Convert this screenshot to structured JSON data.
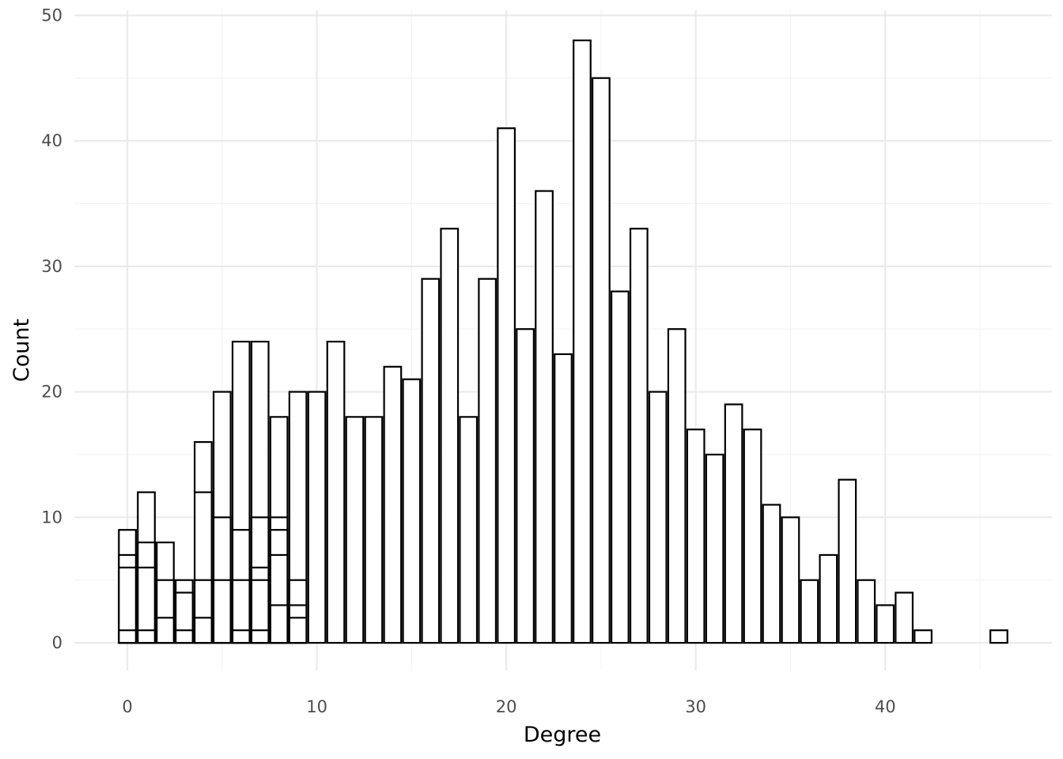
{
  "chart_data": {
    "type": "bar",
    "subtype": "stacked-histogram",
    "title": "",
    "xlabel": "Degree",
    "ylabel": "Count",
    "xlim": [
      -2.8,
      48.8
    ],
    "ylim": [
      -2.2,
      50.4
    ],
    "x_ticks": [
      0,
      10,
      20,
      30,
      40
    ],
    "y_ticks": [
      0,
      10,
      20,
      30,
      40,
      50
    ],
    "grid": true,
    "legend": "none",
    "bar_fill": "#ffffff",
    "bar_stroke": "#000000",
    "bins": [
      {
        "x": 0,
        "stack": [
          1,
          6,
          7,
          9
        ]
      },
      {
        "x": 1,
        "stack": [
          1,
          6,
          8,
          12
        ]
      },
      {
        "x": 2,
        "stack": [
          2,
          5,
          8
        ]
      },
      {
        "x": 3,
        "stack": [
          1,
          4,
          5
        ]
      },
      {
        "x": 4,
        "stack": [
          2,
          5,
          12,
          16
        ]
      },
      {
        "x": 5,
        "stack": [
          5,
          10,
          20
        ]
      },
      {
        "x": 6,
        "stack": [
          1,
          5,
          9,
          24
        ]
      },
      {
        "x": 7,
        "stack": [
          1,
          5,
          6,
          10,
          24
        ]
      },
      {
        "x": 8,
        "stack": [
          3,
          7,
          9,
          10,
          18
        ]
      },
      {
        "x": 9,
        "stack": [
          2,
          3,
          5,
          20
        ]
      },
      {
        "x": 10,
        "stack": [
          20
        ]
      },
      {
        "x": 11,
        "stack": [
          24
        ]
      },
      {
        "x": 12,
        "stack": [
          18
        ]
      },
      {
        "x": 13,
        "stack": [
          18
        ]
      },
      {
        "x": 14,
        "stack": [
          22
        ]
      },
      {
        "x": 15,
        "stack": [
          21
        ]
      },
      {
        "x": 16,
        "stack": [
          29
        ]
      },
      {
        "x": 17,
        "stack": [
          33
        ]
      },
      {
        "x": 18,
        "stack": [
          18
        ]
      },
      {
        "x": 19,
        "stack": [
          29
        ]
      },
      {
        "x": 20,
        "stack": [
          41
        ]
      },
      {
        "x": 21,
        "stack": [
          25
        ]
      },
      {
        "x": 22,
        "stack": [
          36
        ]
      },
      {
        "x": 23,
        "stack": [
          23
        ]
      },
      {
        "x": 24,
        "stack": [
          48
        ]
      },
      {
        "x": 25,
        "stack": [
          45
        ]
      },
      {
        "x": 26,
        "stack": [
          28
        ]
      },
      {
        "x": 27,
        "stack": [
          33
        ]
      },
      {
        "x": 28,
        "stack": [
          20
        ]
      },
      {
        "x": 29,
        "stack": [
          25
        ]
      },
      {
        "x": 30,
        "stack": [
          17
        ]
      },
      {
        "x": 31,
        "stack": [
          15
        ]
      },
      {
        "x": 32,
        "stack": [
          19
        ]
      },
      {
        "x": 33,
        "stack": [
          17
        ]
      },
      {
        "x": 34,
        "stack": [
          11
        ]
      },
      {
        "x": 35,
        "stack": [
          10
        ]
      },
      {
        "x": 36,
        "stack": [
          5
        ]
      },
      {
        "x": 37,
        "stack": [
          7
        ]
      },
      {
        "x": 38,
        "stack": [
          13
        ]
      },
      {
        "x": 39,
        "stack": [
          5
        ]
      },
      {
        "x": 40,
        "stack": [
          3
        ]
      },
      {
        "x": 41,
        "stack": [
          4
        ]
      },
      {
        "x": 42,
        "stack": [
          1
        ]
      },
      {
        "x": 46,
        "stack": [
          1
        ]
      }
    ]
  }
}
